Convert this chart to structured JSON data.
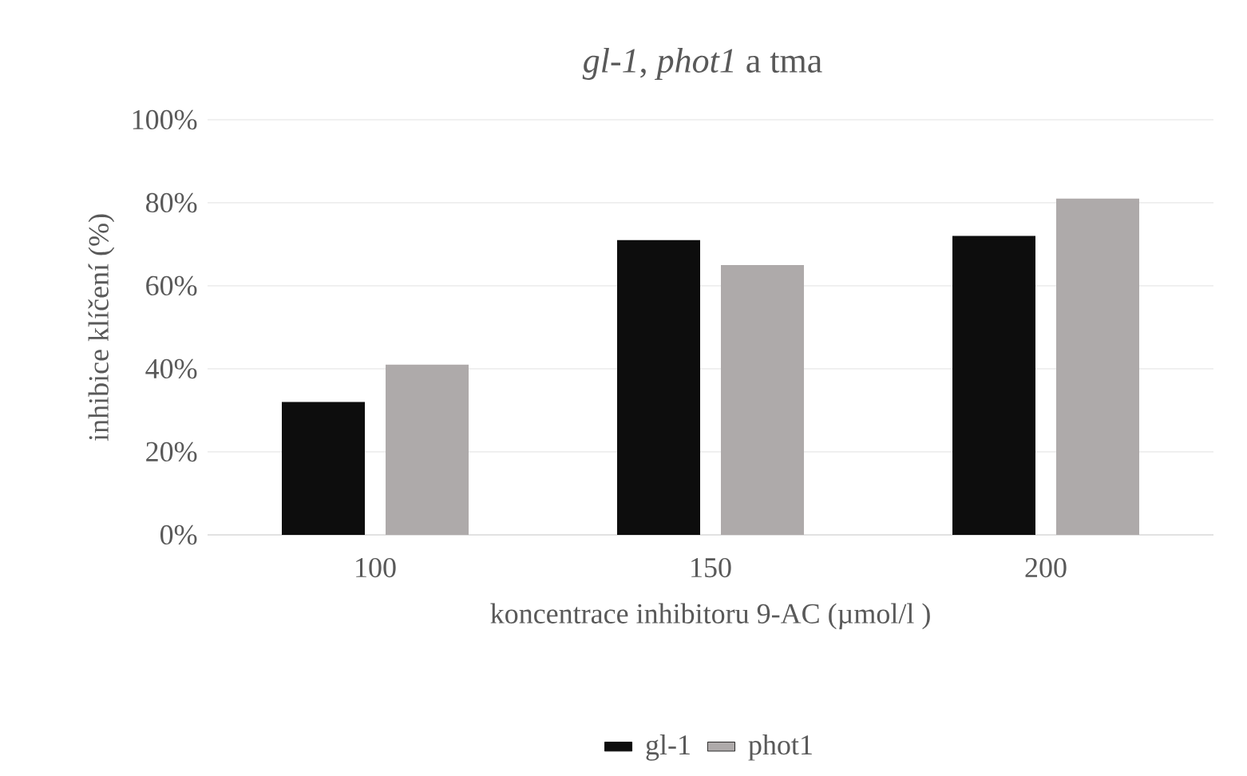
{
  "chart_data": {
    "type": "bar",
    "title": "*gl-1*, *phot1* a tma",
    "xlabel": "koncentrace inhibitoru 9-AC (µmol/l )",
    "ylabel": "inhibice klíčení (%)",
    "categories": [
      "100",
      "150",
      "200"
    ],
    "series": [
      {
        "name": "gl-1",
        "color": "#0d0d0d",
        "values": [
          32,
          71,
          72
        ]
      },
      {
        "name": "phot1",
        "color": "#aeaaaa",
        "values": [
          41,
          65,
          81
        ]
      }
    ],
    "ylim": [
      0,
      100
    ],
    "yticks": [
      {
        "value": 0,
        "label": "0%"
      },
      {
        "value": 20,
        "label": "20%"
      },
      {
        "value": 40,
        "label": "40%"
      },
      {
        "value": 60,
        "label": "60%"
      },
      {
        "value": 80,
        "label": "80%"
      },
      {
        "value": 100,
        "label": "100%"
      }
    ],
    "grid": "y",
    "legend": "bottom"
  }
}
